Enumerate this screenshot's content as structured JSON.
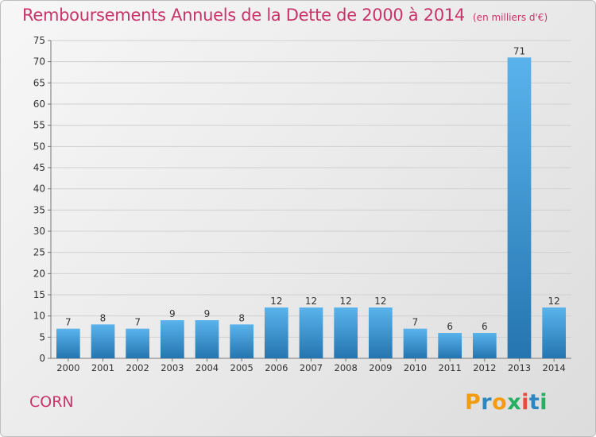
{
  "header": {
    "title": "Remboursements Annuels de la Dette de 2000 à 2014",
    "unit": "(en milliers d'€)"
  },
  "footer": {
    "city": "CORN",
    "brand_letters": [
      "P",
      "r",
      "o",
      "x",
      "i",
      "t",
      "i"
    ],
    "brand_colors": [
      "#f39c12",
      "#2e86c1",
      "#f39c12",
      "#27ae60",
      "#e74c3c",
      "#2e86c1",
      "#27ae60"
    ]
  },
  "chart_data": {
    "type": "bar",
    "categories": [
      "2000",
      "2001",
      "2002",
      "2003",
      "2004",
      "2005",
      "2006",
      "2007",
      "2008",
      "2009",
      "2010",
      "2011",
      "2012",
      "2013",
      "2014"
    ],
    "values": [
      7,
      8,
      7,
      9,
      9,
      8,
      12,
      12,
      12,
      12,
      7,
      6,
      6,
      71,
      12
    ],
    "title": "Remboursements Annuels de la Dette de 2000 à 2014",
    "xlabel": "",
    "ylabel": "",
    "ylim": [
      0,
      75
    ],
    "yticks": [
      0,
      5,
      10,
      15,
      20,
      25,
      30,
      35,
      40,
      45,
      50,
      55,
      60,
      65,
      70,
      75
    ],
    "grid": true,
    "colors": {
      "bar_top": "#5ab3ec",
      "bar_bottom": "#2475b0",
      "axis_text": "#333333",
      "grid": "#d0d0d0"
    }
  }
}
